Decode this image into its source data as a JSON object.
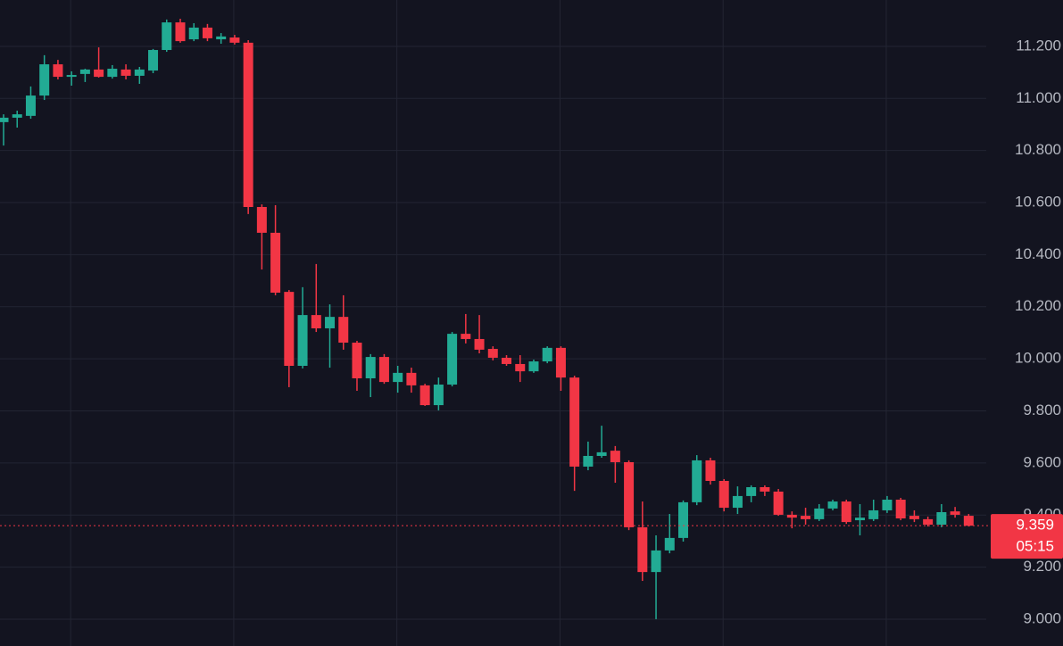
{
  "chart_data": {
    "type": "candlestick",
    "up_color": "#22ab94",
    "down_color": "#f23645",
    "grid": true,
    "ylim": [
      8.897,
      11.378
    ],
    "yticks": [
      {
        "value": 9,
        "label": "9.000"
      },
      {
        "value": 9.2,
        "label": "9.200"
      },
      {
        "value": 9.4,
        "label": "9.400"
      },
      {
        "value": 9.6,
        "label": "9.600"
      },
      {
        "value": 9.8,
        "label": "9.800"
      },
      {
        "value": 10,
        "label": "10.000"
      },
      {
        "value": 10.2,
        "label": "10.200"
      },
      {
        "value": 10.4,
        "label": "10.400"
      },
      {
        "value": 10.6,
        "label": "10.600"
      },
      {
        "value": 10.8,
        "label": "10.800"
      },
      {
        "value": 11,
        "label": "11.000"
      },
      {
        "value": 11.2,
        "label": "11.200"
      }
    ],
    "open": [
      10.909,
      10.926,
      10.933,
      11.011,
      11.131,
      11.083,
      11.094,
      11.111,
      11.083,
      11.111,
      11.087,
      11.107,
      11.186,
      11.292,
      11.227,
      11.272,
      11.227,
      11.234,
      11.214,
      10.583,
      10.484,
      10.257,
      9.973,
      10.168,
      10.117,
      10.161,
      10.062,
      9.925,
      10.007,
      9.911,
      9.946,
      9.898,
      9.822,
      9.901,
      10.096,
      10.076,
      10.038,
      10.004,
      9.98,
      9.952,
      9.99,
      10.042,
      9.928,
      9.586,
      9.627,
      9.647,
      9.603,
      9.353,
      9.181,
      9.264,
      9.312,
      9.449,
      9.61,
      9.531,
      9.428,
      9.473,
      9.507,
      9.49,
      9.401,
      9.397,
      9.384,
      9.425,
      9.452,
      9.38,
      9.384,
      9.418,
      9.459,
      9.397,
      9.384,
      9.363,
      9.414,
      9.397
    ],
    "high": [
      10.939,
      10.953,
      11.046,
      11.166,
      11.148,
      11.104,
      11.114,
      11.196,
      11.128,
      11.131,
      11.121,
      11.19,
      11.303,
      11.306,
      11.289,
      11.286,
      11.251,
      11.244,
      11.224,
      10.593,
      10.59,
      10.264,
      10.275,
      10.364,
      10.209,
      10.244,
      10.069,
      10.018,
      10.018,
      9.973,
      9.966,
      9.904,
      9.928,
      10.103,
      10.172,
      10.168,
      10.048,
      10.014,
      10.014,
      9.997,
      10.048,
      10.048,
      9.935,
      9.682,
      9.743,
      9.665,
      9.61,
      9.452,
      9.322,
      9.404,
      9.456,
      9.63,
      9.62,
      9.538,
      9.51,
      9.514,
      9.514,
      9.5,
      9.414,
      9.428,
      9.442,
      9.459,
      9.459,
      9.442,
      9.459,
      9.473,
      9.466,
      9.418,
      9.394,
      9.442,
      9.431,
      9.404
    ],
    "low": [
      10.819,
      10.888,
      10.922,
      10.994,
      11.073,
      11.049,
      11.063,
      11.08,
      11.076,
      11.073,
      11.056,
      11.097,
      11.179,
      11.214,
      11.22,
      11.22,
      11.21,
      11.207,
      10.556,
      10.343,
      10.244,
      9.891,
      9.963,
      10.103,
      9.966,
      10.035,
      9.877,
      9.853,
      9.904,
      9.87,
      9.87,
      9.819,
      9.802,
      9.894,
      10.059,
      10.021,
      9.994,
      9.973,
      9.911,
      9.946,
      9.983,
      9.877,
      9.493,
      9.572,
      9.62,
      9.524,
      9.342,
      9.147,
      9.0,
      9.253,
      9.298,
      9.438,
      9.517,
      9.414,
      9.404,
      9.449,
      9.473,
      9.397,
      9.349,
      9.363,
      9.377,
      9.418,
      9.366,
      9.322,
      9.377,
      9.408,
      9.38,
      9.373,
      9.356,
      9.353,
      9.39,
      9.356
    ],
    "close": [
      10.926,
      10.939,
      11.011,
      11.131,
      11.083,
      11.09,
      11.111,
      11.083,
      11.114,
      11.087,
      11.111,
      11.186,
      11.292,
      11.22,
      11.272,
      11.231,
      11.238,
      11.214,
      10.583,
      10.484,
      10.254,
      9.973,
      10.168,
      10.117,
      10.161,
      10.062,
      9.925,
      10.007,
      9.911,
      9.946,
      9.898,
      9.822,
      9.901,
      10.096,
      10.076,
      10.035,
      10.004,
      9.98,
      9.952,
      9.99,
      10.042,
      9.928,
      9.586,
      9.627,
      9.641,
      9.603,
      9.353,
      9.181,
      9.264,
      9.312,
      9.449,
      9.61,
      9.531,
      9.428,
      9.473,
      9.507,
      9.49,
      9.401,
      9.39,
      9.384,
      9.425,
      9.452,
      9.373,
      9.39,
      9.418,
      9.459,
      9.387,
      9.384,
      9.363,
      9.411,
      9.401,
      9.359
    ],
    "last_price": 9.359,
    "countdown": "05:15"
  }
}
